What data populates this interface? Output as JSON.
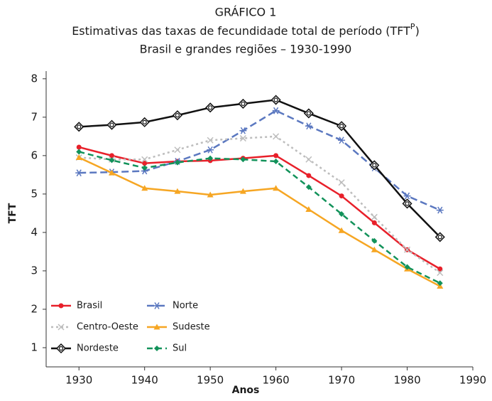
{
  "chart_data": {
    "type": "line",
    "title": "GRÁFICO 1",
    "subtitle": [
      "Estimativas das taxas de fecundidade total de período (TFT",
      "P",
      ")"
    ],
    "subtitle2": "Brasil e grandes regiões – 1930-1990",
    "x_label": "Anos",
    "y_label": "TFT",
    "x": [
      1930,
      1935,
      1940,
      1945,
      1950,
      1955,
      1960,
      1965,
      1970,
      1975,
      1980,
      1985
    ],
    "xlim": [
      1925,
      1990
    ],
    "xticks": [
      1930,
      1940,
      1950,
      1960,
      1970,
      1980,
      1990
    ],
    "ylim": [
      0.5,
      8.2
    ],
    "yticks": [
      1,
      2,
      3,
      4,
      5,
      6,
      7,
      8
    ],
    "series": [
      {
        "name": "Brasil",
        "color": "#e8202a",
        "marker": "circle",
        "dash": "none",
        "values": [
          6.22,
          6.0,
          5.8,
          5.85,
          5.87,
          5.93,
          6.0,
          5.48,
          4.95,
          4.25,
          3.55,
          3.05
        ]
      },
      {
        "name": "Norte",
        "color": "#5b78c0",
        "marker": "asterisk",
        "dash": "10 5",
        "values": [
          5.55,
          5.57,
          5.6,
          5.85,
          6.15,
          6.65,
          7.17,
          6.77,
          6.4,
          5.68,
          4.95,
          4.58
        ]
      },
      {
        "name": "Centro-Oeste",
        "color": "#bdbdbd",
        "marker": "cross",
        "dash": "3 4",
        "values": [
          5.95,
          5.9,
          5.9,
          6.15,
          6.4,
          6.45,
          6.5,
          5.9,
          5.3,
          4.4,
          3.55,
          2.95
        ]
      },
      {
        "name": "Sudeste",
        "color": "#f6a623",
        "marker": "triangle",
        "dash": "none",
        "values": [
          5.95,
          5.55,
          5.15,
          5.07,
          4.98,
          5.07,
          5.15,
          4.6,
          4.05,
          3.55,
          3.05,
          2.6
        ]
      },
      {
        "name": "Nordeste",
        "color": "#111111",
        "marker": "ring-diamond",
        "dash": "none",
        "values": [
          6.75,
          6.8,
          6.87,
          7.05,
          7.25,
          7.35,
          7.45,
          7.1,
          6.77,
          5.75,
          4.75,
          3.88
        ]
      },
      {
        "name": "Sul",
        "color": "#12925a",
        "marker": "diamond",
        "dash": "8 5",
        "values": [
          6.1,
          5.88,
          5.68,
          5.82,
          5.93,
          5.9,
          5.85,
          5.18,
          4.48,
          3.78,
          3.1,
          2.68
        ]
      }
    ]
  }
}
